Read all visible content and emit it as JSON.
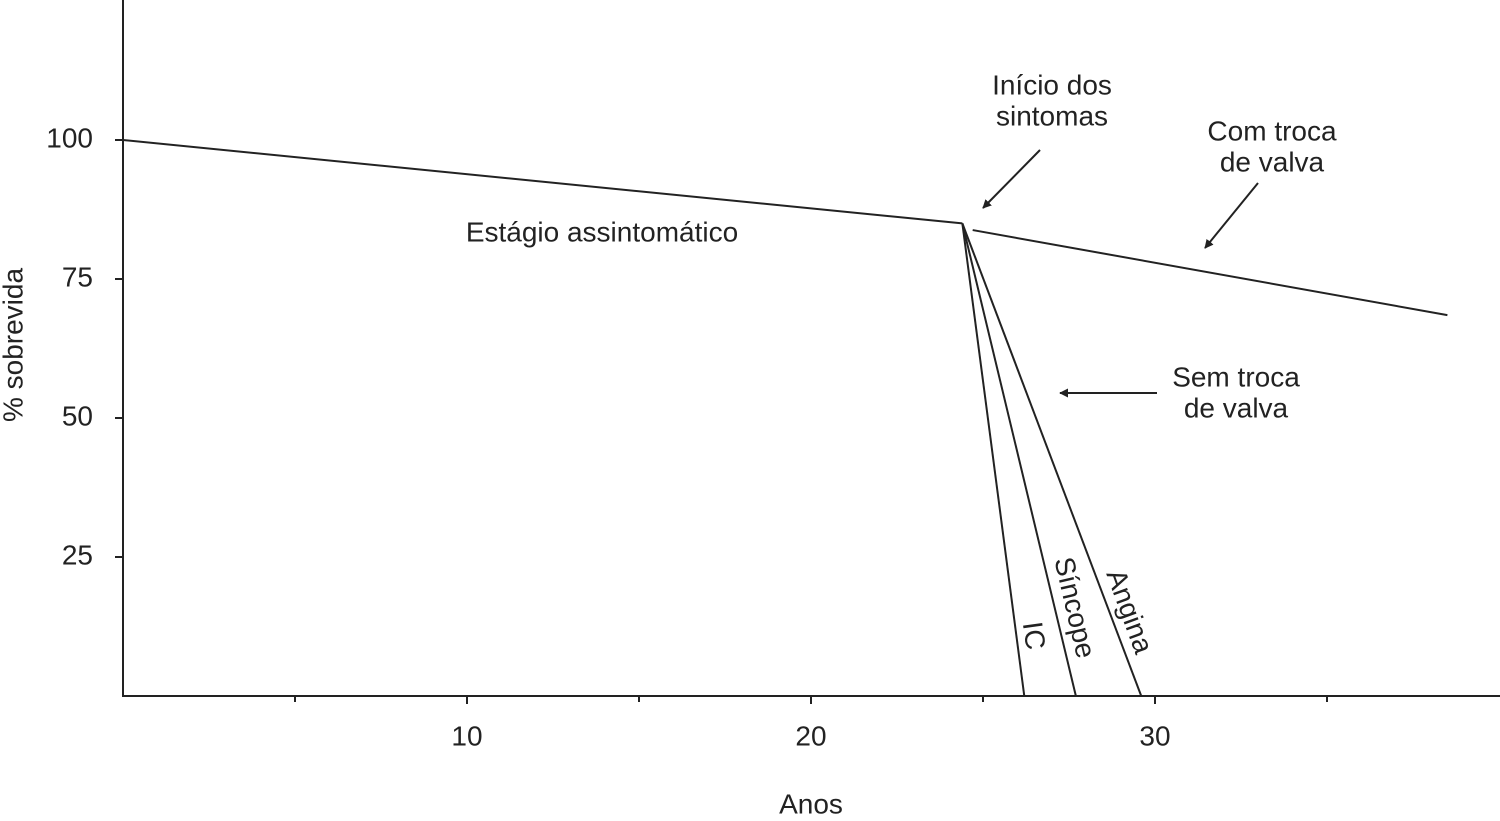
{
  "chart_data": {
    "type": "line",
    "xlabel": "Anos",
    "ylabel": "% sobrevida",
    "xlim": [
      0,
      40
    ],
    "ylim": [
      0,
      125
    ],
    "xticks": [
      10,
      20,
      30
    ],
    "xminor_ticks": [
      5,
      15,
      25,
      35
    ],
    "yticks": [
      25,
      50,
      75,
      100
    ],
    "grid": false,
    "series": [
      {
        "color": "#222222",
        "x": [
          0,
          24.4
        ],
        "values": [
          100,
          85
        ]
      },
      {
        "color": "#222222",
        "x": [
          24.7,
          38.5
        ],
        "values": [
          83.8,
          68.5
        ]
      },
      {
        "name": "IC",
        "color": "#222222",
        "x": [
          24.4,
          26.2
        ],
        "values": [
          85,
          0
        ]
      },
      {
        "name": "Síncope",
        "color": "#222222",
        "x": [
          24.4,
          27.7
        ],
        "values": [
          85,
          0
        ]
      },
      {
        "name": "Angina",
        "color": "#222222",
        "x": [
          24.4,
          29.6
        ],
        "values": [
          85,
          0
        ]
      }
    ],
    "annotations": [
      {
        "lines": [
          "Estágio assintomático"
        ]
      },
      {
        "lines": [
          "Início dos",
          "sintomas"
        ]
      },
      {
        "lines": [
          "Com troca",
          "de valva"
        ]
      },
      {
        "lines": [
          "Sem troca",
          "de valva"
        ]
      }
    ]
  }
}
